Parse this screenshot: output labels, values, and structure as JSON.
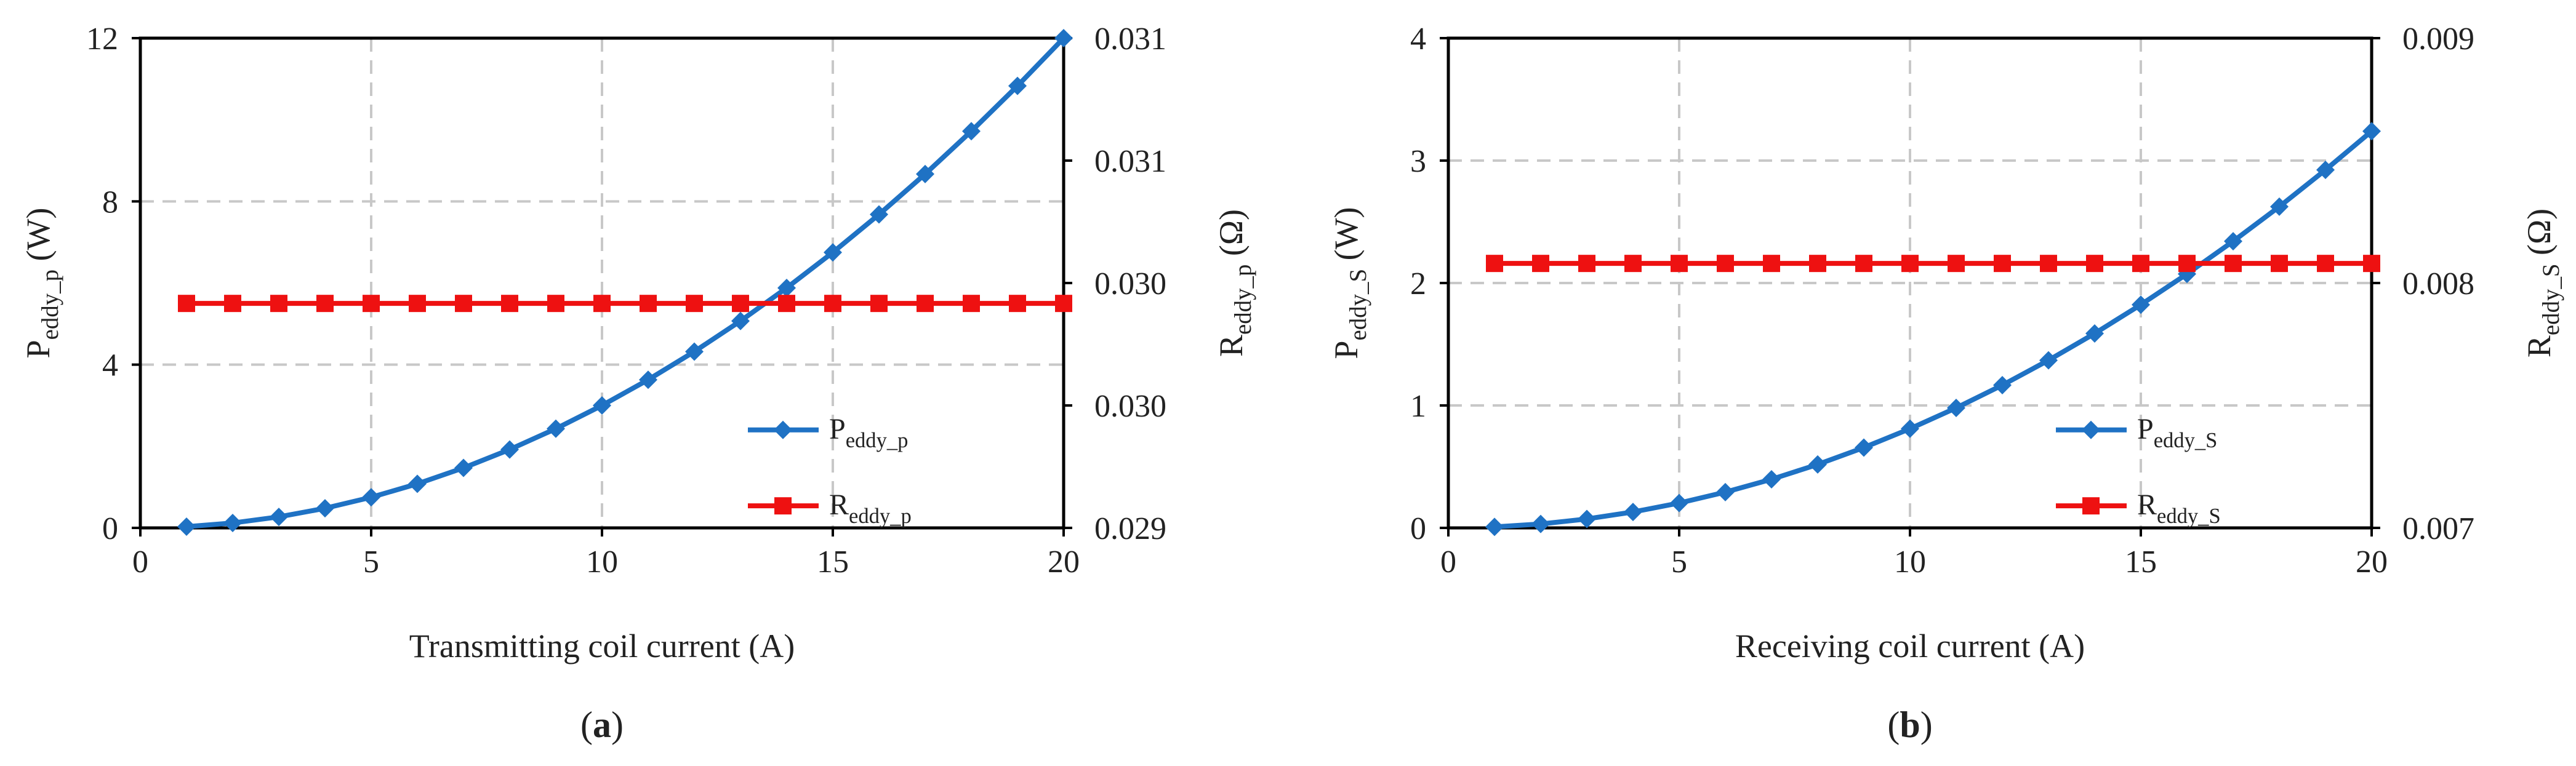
{
  "chart_data": [
    {
      "type": "line",
      "panel_label": "(a)",
      "panel_letter": "a",
      "xlabel": "Transmitting coil current (A)",
      "ylabel_left": {
        "main": "P",
        "sub": "eddy_p",
        "unit": "(W)"
      },
      "ylabel_right": {
        "main": "R",
        "sub": "eddy_p",
        "unit": "(Ω)"
      },
      "xlim": [
        0,
        20
      ],
      "xticks": [
        "0",
        "5",
        "10",
        "15",
        "20"
      ],
      "ylim_left": [
        0,
        12
      ],
      "yticks_left": [
        "0",
        "4",
        "8",
        "12"
      ],
      "ylim_right": [
        0.029,
        0.0314
      ],
      "yticks_right": [
        "0.029",
        "0.030",
        "0.030",
        "0.031",
        "0.031"
      ],
      "grid": true,
      "legend_position": "lower-right",
      "series": [
        {
          "name": "Peddy_p",
          "legend": {
            "main": "P",
            "sub": "eddy_p"
          },
          "axis": "left",
          "marker": "diamond",
          "color": "#1f72c4",
          "x": [
            1,
            2,
            3,
            4,
            5,
            6,
            7,
            8,
            9,
            10,
            11,
            12,
            13,
            14,
            15,
            16,
            17,
            18,
            19,
            20
          ],
          "values": [
            0.03,
            0.12,
            0.27,
            0.48,
            0.75,
            1.08,
            1.47,
            1.92,
            2.43,
            3.0,
            3.63,
            4.32,
            5.07,
            5.88,
            6.75,
            7.68,
            8.67,
            9.72,
            10.83,
            12.0
          ]
        },
        {
          "name": "Reddy_p",
          "legend": {
            "main": "R",
            "sub": "eddy_p"
          },
          "axis": "right",
          "marker": "square",
          "color": "#ee1111",
          "x": [
            1,
            2,
            3,
            4,
            5,
            6,
            7,
            8,
            9,
            10,
            11,
            12,
            13,
            14,
            15,
            16,
            17,
            18,
            19,
            20
          ],
          "values": [
            0.0301,
            0.0301,
            0.0301,
            0.0301,
            0.0301,
            0.0301,
            0.0301,
            0.0301,
            0.0301,
            0.0301,
            0.0301,
            0.0301,
            0.0301,
            0.0301,
            0.0301,
            0.0301,
            0.0301,
            0.0301,
            0.0301,
            0.0301
          ]
        }
      ]
    },
    {
      "type": "line",
      "panel_label": "(b)",
      "panel_letter": "b",
      "xlabel": "Receiving coil current (A)",
      "ylabel_left": {
        "main": "P",
        "sub": "eddy_S",
        "unit": "(W)"
      },
      "ylabel_right": {
        "main": "R",
        "sub": "eddy_S",
        "unit": "(Ω)"
      },
      "xlim": [
        0,
        20
      ],
      "xticks": [
        "0",
        "5",
        "10",
        "15",
        "20"
      ],
      "ylim_left": [
        0,
        4
      ],
      "yticks_left": [
        "0",
        "1",
        "2",
        "3",
        "4"
      ],
      "ylim_right": [
        0.007,
        0.009
      ],
      "yticks_right": [
        "0.007",
        "0.008",
        "0.009"
      ],
      "grid": true,
      "legend_position": "lower-right",
      "series": [
        {
          "name": "Peddy_S",
          "legend": {
            "main": "P",
            "sub": "eddy_S"
          },
          "axis": "left",
          "marker": "diamond",
          "color": "#1f72c4",
          "x": [
            1,
            2,
            3,
            4,
            5,
            6,
            7,
            8,
            9,
            10,
            11,
            12,
            13,
            14,
            15,
            16,
            17,
            18,
            19,
            20
          ],
          "values": [
            0.008,
            0.032,
            0.073,
            0.13,
            0.203,
            0.292,
            0.397,
            0.518,
            0.656,
            0.81,
            0.98,
            1.166,
            1.369,
            1.588,
            1.823,
            2.074,
            2.341,
            2.624,
            2.924,
            3.24
          ]
        },
        {
          "name": "Reddy_S",
          "legend": {
            "main": "R",
            "sub": "eddy_S"
          },
          "axis": "right",
          "marker": "square",
          "color": "#ee1111",
          "x": [
            1,
            2,
            3,
            4,
            5,
            6,
            7,
            8,
            9,
            10,
            11,
            12,
            13,
            14,
            15,
            16,
            17,
            18,
            19,
            20
          ],
          "values": [
            0.00808,
            0.00808,
            0.00808,
            0.00808,
            0.00808,
            0.00808,
            0.00808,
            0.00808,
            0.00808,
            0.00808,
            0.00808,
            0.00808,
            0.00808,
            0.00808,
            0.00808,
            0.00808,
            0.00808,
            0.00808,
            0.00808,
            0.00808
          ]
        }
      ]
    }
  ]
}
